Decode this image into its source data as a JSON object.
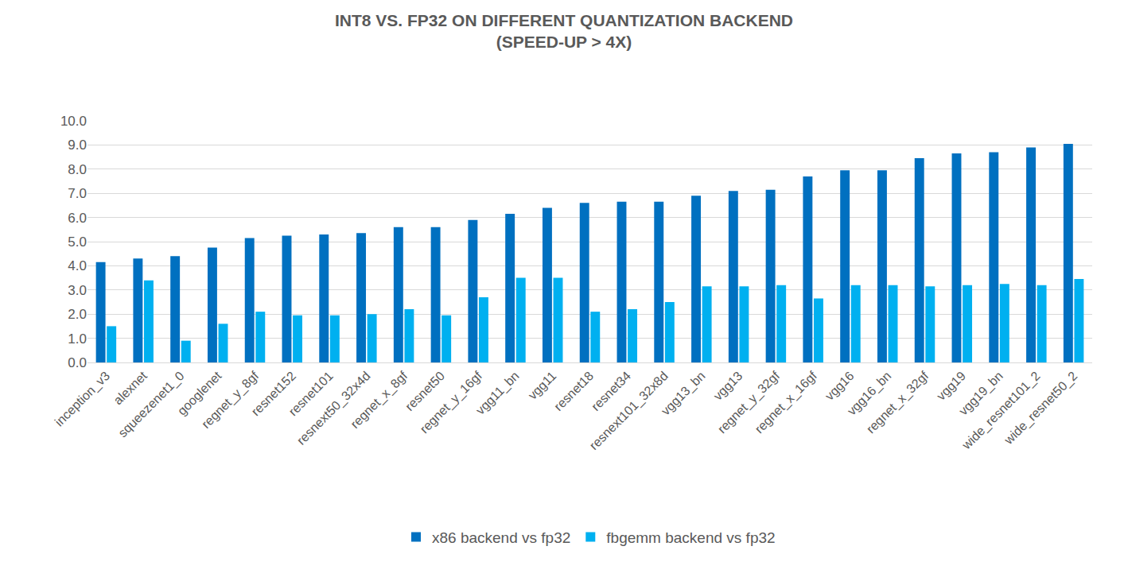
{
  "chart_data": {
    "type": "bar",
    "title": "INT8 VS. FP32 ON DIFFERENT QUANTIZATION BACKEND",
    "subtitle": "(SPEED-UP > 4X)",
    "categories": [
      "inception_v3",
      "alexnet",
      "squeezenet1_0",
      "googlenet",
      "regnet_y_8gf",
      "resnet152",
      "resnet101",
      "resnext50_32x4d",
      "regnet_x_8gf",
      "resnet50",
      "regnet_y_16gf",
      "vgg11_bn",
      "vgg11",
      "resnet18",
      "resnet34",
      "resnext101_32x8d",
      "vgg13_bn",
      "vgg13",
      "regnet_y_32gf",
      "regnet_x_16gf",
      "vgg16",
      "vgg16_bn",
      "regnet_x_32gf",
      "vgg19",
      "vgg19_bn",
      "wide_resnet101_2",
      "wide_resnet50_2"
    ],
    "series": [
      {
        "name": "x86 backend vs fp32",
        "color": "#0070C0",
        "values": [
          4.15,
          4.3,
          4.4,
          4.75,
          5.15,
          5.25,
          5.3,
          5.35,
          5.6,
          5.6,
          5.9,
          6.15,
          6.4,
          6.6,
          6.65,
          6.65,
          6.9,
          7.1,
          7.15,
          7.7,
          7.95,
          7.95,
          8.45,
          8.65,
          8.7,
          8.9,
          9.05
        ]
      },
      {
        "name": "fbgemm backend vs fp32",
        "color": "#00B0F0",
        "values": [
          1.5,
          3.4,
          0.9,
          1.6,
          2.1,
          1.95,
          1.95,
          2.0,
          2.2,
          1.95,
          2.7,
          3.5,
          3.5,
          2.1,
          2.2,
          2.5,
          3.15,
          3.15,
          3.2,
          2.65,
          3.2,
          3.2,
          3.15,
          3.2,
          3.25,
          3.2,
          3.45
        ]
      }
    ],
    "ylim": [
      0,
      10
    ],
    "yticks": [
      {
        "value": 0,
        "label": "0.0"
      },
      {
        "value": 1,
        "label": "1.0"
      },
      {
        "value": 2,
        "label": "2.0"
      },
      {
        "value": 3,
        "label": "3.0"
      },
      {
        "value": 4,
        "label": "4.0"
      },
      {
        "value": 5,
        "label": "5.0"
      },
      {
        "value": 6,
        "label": "6.0"
      },
      {
        "value": 7,
        "label": "7.0"
      },
      {
        "value": 8,
        "label": "8.0"
      },
      {
        "value": 9,
        "label": "9.0"
      },
      {
        "value": 10,
        "label": "10.0"
      }
    ],
    "grid": true,
    "legend": "bottom"
  }
}
